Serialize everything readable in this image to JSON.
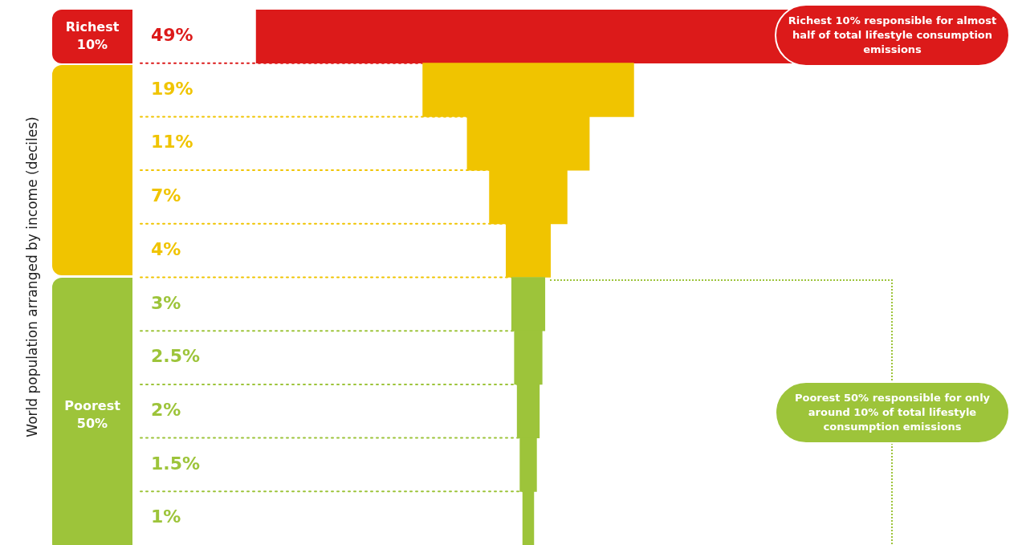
{
  "chart_data": {
    "type": "other",
    "ylabel": "World population arranged by income (deciles)",
    "categories": [
      null,
      null,
      null,
      null,
      null,
      null,
      null,
      null,
      null,
      null
    ],
    "values": [
      49,
      19,
      11,
      7,
      4,
      3,
      2.5,
      2,
      1.5,
      1
    ],
    "value_labels": [
      "49%",
      "19%",
      "11%",
      "7%",
      "4%",
      "3%",
      "2.5%",
      "2%",
      "1.5%",
      "1%"
    ],
    "colors": [
      "#dc1a1a",
      "#f0c400",
      "#f0c400",
      "#f0c400",
      "#f0c400",
      "#9dc43a",
      "#9dc43a",
      "#9dc43a",
      "#9dc43a",
      "#9dc43a"
    ],
    "legend": false,
    "annotations": [
      "Richest 10%",
      "Poorest 50%",
      "Richest 10% responsible for almost half of total lifestyle consumption emissions",
      "Poorest 50% responsible for only around 10% of total lifestyle consumption emissions"
    ]
  }
}
